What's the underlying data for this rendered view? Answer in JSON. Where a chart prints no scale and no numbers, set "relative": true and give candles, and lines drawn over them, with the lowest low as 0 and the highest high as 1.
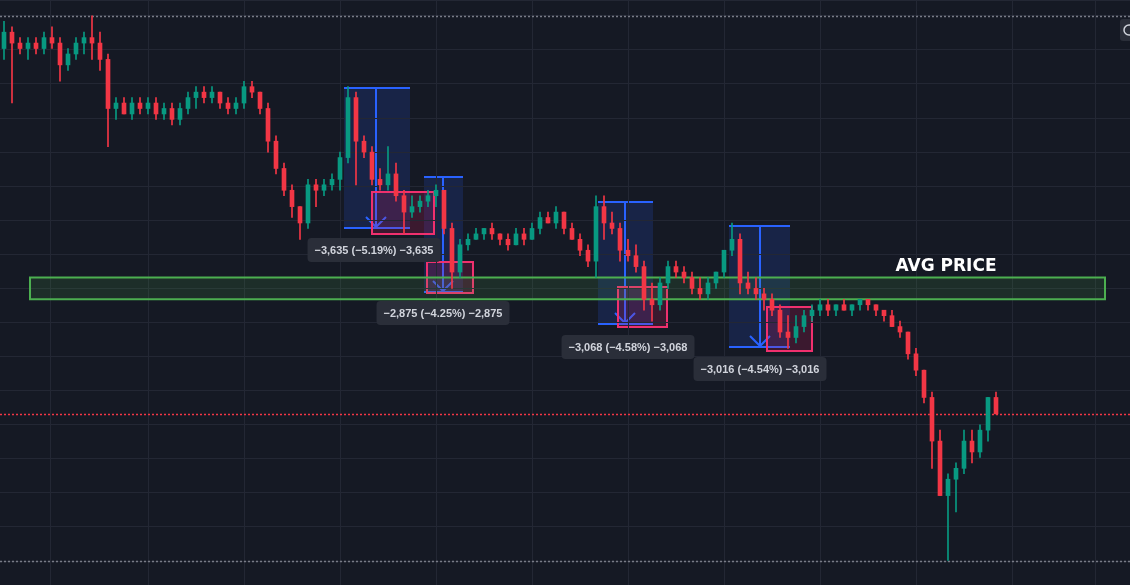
{
  "chart_data": {
    "type": "candlestick",
    "relative": true,
    "tick_labels": false,
    "grid": true,
    "categories": [
      null,
      null,
      null,
      null,
      null,
      null,
      null,
      null,
      null,
      null,
      null,
      null,
      null,
      null,
      null,
      null,
      null,
      null,
      null,
      null,
      null,
      null,
      null,
      null,
      null,
      null,
      null,
      null,
      null,
      null,
      null,
      null,
      null,
      null,
      null,
      null,
      null,
      null,
      null,
      null,
      null,
      null,
      null,
      null,
      null,
      null,
      null,
      null,
      null,
      null,
      null,
      null,
      null,
      null,
      null,
      null,
      null,
      null,
      null,
      null,
      null,
      null,
      null,
      null,
      null,
      null,
      null,
      null,
      null,
      null,
      null,
      null,
      null,
      null,
      null,
      null,
      null,
      null,
      null,
      null,
      null,
      null,
      null,
      null,
      null,
      null,
      null,
      null,
      null,
      null,
      null,
      null,
      null,
      null,
      null,
      null,
      null,
      null,
      null,
      null,
      null,
      null,
      null,
      null,
      null,
      null,
      null,
      null,
      null,
      null,
      null,
      null,
      null,
      null,
      null,
      null,
      null,
      null,
      null,
      null,
      null,
      null,
      null,
      null,
      null
    ],
    "ohlc": [
      [
        0.94,
        0.99,
        0.92,
        0.97
      ],
      [
        0.97,
        0.98,
        0.84,
        0.95
      ],
      [
        0.95,
        0.96,
        0.93,
        0.94
      ],
      [
        0.94,
        0.96,
        0.92,
        0.95
      ],
      [
        0.95,
        0.96,
        0.93,
        0.94
      ],
      [
        0.94,
        0.97,
        0.93,
        0.96
      ],
      [
        0.96,
        0.98,
        0.94,
        0.95
      ],
      [
        0.95,
        0.96,
        0.88,
        0.91
      ],
      [
        0.91,
        0.94,
        0.9,
        0.93
      ],
      [
        0.93,
        0.96,
        0.92,
        0.95
      ],
      [
        0.95,
        0.97,
        0.93,
        0.96
      ],
      [
        0.96,
        1.0,
        0.92,
        0.95
      ],
      [
        0.95,
        0.97,
        0.9,
        0.92
      ],
      [
        0.92,
        0.93,
        0.76,
        0.83
      ],
      [
        0.83,
        0.85,
        0.81,
        0.84
      ],
      [
        0.84,
        0.85,
        0.82,
        0.82
      ],
      [
        0.82,
        0.85,
        0.81,
        0.84
      ],
      [
        0.84,
        0.85,
        0.82,
        0.83
      ],
      [
        0.83,
        0.85,
        0.82,
        0.84
      ],
      [
        0.84,
        0.85,
        0.81,
        0.82
      ],
      [
        0.82,
        0.84,
        0.81,
        0.83
      ],
      [
        0.83,
        0.84,
        0.8,
        0.81
      ],
      [
        0.81,
        0.84,
        0.8,
        0.83
      ],
      [
        0.83,
        0.86,
        0.82,
        0.85
      ],
      [
        0.85,
        0.87,
        0.83,
        0.86
      ],
      [
        0.86,
        0.87,
        0.84,
        0.85
      ],
      [
        0.85,
        0.87,
        0.84,
        0.86
      ],
      [
        0.86,
        0.86,
        0.83,
        0.84
      ],
      [
        0.84,
        0.85,
        0.82,
        0.83
      ],
      [
        0.83,
        0.85,
        0.82,
        0.84
      ],
      [
        0.84,
        0.88,
        0.83,
        0.87
      ],
      [
        0.87,
        0.88,
        0.85,
        0.86
      ],
      [
        0.86,
        0.86,
        0.82,
        0.83
      ],
      [
        0.83,
        0.84,
        0.75,
        0.77
      ],
      [
        0.77,
        0.78,
        0.71,
        0.72
      ],
      [
        0.72,
        0.73,
        0.67,
        0.68
      ],
      [
        0.68,
        0.69,
        0.63,
        0.65
      ],
      [
        0.65,
        0.65,
        0.59,
        0.62
      ],
      [
        0.62,
        0.7,
        0.61,
        0.69
      ],
      [
        0.69,
        0.7,
        0.65,
        0.68
      ],
      [
        0.68,
        0.7,
        0.67,
        0.69
      ],
      [
        0.69,
        0.71,
        0.68,
        0.7
      ],
      [
        0.7,
        0.75,
        0.68,
        0.74
      ],
      [
        0.74,
        0.87,
        0.73,
        0.85
      ],
      [
        0.85,
        0.86,
        0.69,
        0.77
      ],
      [
        0.77,
        0.78,
        0.74,
        0.75
      ],
      [
        0.75,
        0.76,
        0.69,
        0.7
      ],
      [
        0.7,
        0.72,
        0.68,
        0.69
      ],
      [
        0.69,
        0.76,
        0.68,
        0.71
      ],
      [
        0.71,
        0.73,
        0.66,
        0.67
      ],
      [
        0.67,
        0.68,
        0.6,
        0.64
      ],
      [
        0.64,
        0.67,
        0.63,
        0.65
      ],
      [
        0.65,
        0.67,
        0.64,
        0.66
      ],
      [
        0.66,
        0.68,
        0.65,
        0.67
      ],
      [
        0.67,
        0.69,
        0.65,
        0.68
      ],
      [
        0.68,
        0.68,
        0.6,
        0.61
      ],
      [
        0.61,
        0.62,
        0.5,
        0.53
      ],
      [
        0.53,
        0.59,
        0.52,
        0.58
      ],
      [
        0.58,
        0.6,
        0.57,
        0.59
      ],
      [
        0.59,
        0.61,
        0.59,
        0.6
      ],
      [
        0.6,
        0.61,
        0.59,
        0.61
      ],
      [
        0.61,
        0.62,
        0.59,
        0.6
      ],
      [
        0.6,
        0.6,
        0.58,
        0.59
      ],
      [
        0.59,
        0.6,
        0.57,
        0.58
      ],
      [
        0.58,
        0.61,
        0.58,
        0.6
      ],
      [
        0.6,
        0.61,
        0.58,
        0.59
      ],
      [
        0.59,
        0.62,
        0.59,
        0.61
      ],
      [
        0.61,
        0.64,
        0.6,
        0.63
      ],
      [
        0.63,
        0.64,
        0.62,
        0.62
      ],
      [
        0.62,
        0.65,
        0.61,
        0.64
      ],
      [
        0.64,
        0.64,
        0.6,
        0.61
      ],
      [
        0.61,
        0.62,
        0.59,
        0.59
      ],
      [
        0.59,
        0.6,
        0.56,
        0.57
      ],
      [
        0.57,
        0.58,
        0.54,
        0.55
      ],
      [
        0.55,
        0.67,
        0.52,
        0.65
      ],
      [
        0.65,
        0.67,
        0.59,
        0.62
      ],
      [
        0.62,
        0.64,
        0.6,
        0.61
      ],
      [
        0.61,
        0.62,
        0.55,
        0.57
      ],
      [
        0.57,
        0.59,
        0.55,
        0.56
      ],
      [
        0.56,
        0.58,
        0.53,
        0.54
      ],
      [
        0.54,
        0.55,
        0.46,
        0.48
      ],
      [
        0.48,
        0.51,
        0.44,
        0.47
      ],
      [
        0.47,
        0.52,
        0.46,
        0.51
      ],
      [
        0.51,
        0.55,
        0.5,
        0.54
      ],
      [
        0.54,
        0.55,
        0.52,
        0.53
      ],
      [
        0.53,
        0.54,
        0.51,
        0.52
      ],
      [
        0.52,
        0.53,
        0.49,
        0.5
      ],
      [
        0.5,
        0.52,
        0.48,
        0.49
      ],
      [
        0.49,
        0.52,
        0.48,
        0.51
      ],
      [
        0.51,
        0.53,
        0.5,
        0.53
      ],
      [
        0.53,
        0.57,
        0.52,
        0.57
      ],
      [
        0.57,
        0.62,
        0.56,
        0.59
      ],
      [
        0.59,
        0.6,
        0.49,
        0.51
      ],
      [
        0.51,
        0.53,
        0.49,
        0.5
      ],
      [
        0.5,
        0.52,
        0.48,
        0.49
      ],
      [
        0.49,
        0.5,
        0.46,
        0.48
      ],
      [
        0.48,
        0.49,
        0.45,
        0.46
      ],
      [
        0.46,
        0.47,
        0.41,
        0.42
      ],
      [
        0.42,
        0.45,
        0.39,
        0.41
      ],
      [
        0.41,
        0.45,
        0.4,
        0.43
      ],
      [
        0.43,
        0.46,
        0.42,
        0.45
      ],
      [
        0.45,
        0.47,
        0.44,
        0.46
      ],
      [
        0.46,
        0.48,
        0.45,
        0.47
      ],
      [
        0.47,
        0.48,
        0.45,
        0.46
      ],
      [
        0.46,
        0.47,
        0.45,
        0.47
      ],
      [
        0.47,
        0.48,
        0.46,
        0.46
      ],
      [
        0.46,
        0.47,
        0.45,
        0.47
      ],
      [
        0.47,
        0.48,
        0.46,
        0.48
      ],
      [
        0.48,
        0.48,
        0.46,
        0.47
      ],
      [
        0.47,
        0.47,
        0.45,
        0.46
      ],
      [
        0.46,
        0.46,
        0.44,
        0.45
      ],
      [
        0.45,
        0.46,
        0.43,
        0.43
      ],
      [
        0.43,
        0.44,
        0.41,
        0.42
      ],
      [
        0.42,
        0.42,
        0.37,
        0.38
      ],
      [
        0.38,
        0.39,
        0.34,
        0.35
      ],
      [
        0.35,
        0.35,
        0.29,
        0.3
      ],
      [
        0.3,
        0.31,
        0.17,
        0.22
      ],
      [
        0.22,
        0.24,
        0.12,
        0.12
      ],
      [
        0.12,
        0.16,
        0.0,
        0.15
      ],
      [
        0.15,
        0.18,
        0.09,
        0.17
      ],
      [
        0.17,
        0.24,
        0.16,
        0.22
      ],
      [
        0.22,
        0.24,
        0.18,
        0.2
      ],
      [
        0.2,
        0.25,
        0.19,
        0.24
      ],
      [
        0.24,
        0.3,
        0.22,
        0.3
      ],
      [
        0.3,
        0.31,
        0.27,
        0.27
      ]
    ],
    "colors": [
      "#089981",
      "#f23645",
      "#f23645",
      "#089981",
      "#f23645",
      "#089981",
      "#f23645",
      "#f23645",
      "#089981",
      "#089981",
      "#089981",
      "#f23645",
      "#f23645",
      "#f23645",
      "#089981",
      "#f23645",
      "#089981",
      "#f23645",
      "#089981",
      "#f23645",
      "#089981",
      "#f23645",
      "#089981",
      "#089981",
      "#089981",
      "#f23645",
      "#089981",
      "#f23645",
      "#f23645",
      "#089981",
      "#089981",
      "#f23645",
      "#f23645",
      "#f23645",
      "#f23645",
      "#f23645",
      "#f23645",
      "#f23645",
      "#089981",
      "#f23645",
      "#089981",
      "#089981",
      "#089981",
      "#089981",
      "#f23645",
      "#f23645",
      "#f23645",
      "#f23645",
      "#089981",
      "#f23645",
      "#f23645",
      "#089981",
      "#089981",
      "#089981",
      "#089981",
      "#f23645",
      "#f23645",
      "#089981",
      "#089981",
      "#089981",
      "#089981",
      "#f23645",
      "#f23645",
      "#f23645",
      "#089981",
      "#f23645",
      "#089981",
      "#089981",
      "#f23645",
      "#089981",
      "#f23645",
      "#f23645",
      "#f23645",
      "#f23645",
      "#089981",
      "#f23645",
      "#f23645",
      "#f23645",
      "#f23645",
      "#f23645",
      "#f23645",
      "#f23645",
      "#089981",
      "#089981",
      "#f23645",
      "#f23645",
      "#f23645",
      "#f23645",
      "#089981",
      "#089981",
      "#089981",
      "#089981",
      "#f23645",
      "#f23645",
      "#f23645",
      "#f23645",
      "#f23645",
      "#f23645",
      "#f23645",
      "#089981",
      "#089981",
      "#089981",
      "#089981",
      "#f23645",
      "#089981",
      "#f23645",
      "#089981",
      "#089981",
      "#f23645",
      "#f23645",
      "#f23645",
      "#f23645",
      "#f23645",
      "#f23645",
      "#f23645",
      "#f23645",
      "#f23645",
      "#f23645",
      "#089981",
      "#089981",
      "#089981",
      "#f23645",
      "#089981",
      "#089981",
      "#f23645"
    ],
    "ref_lines": [
      {
        "axis": "y",
        "value": 1.0,
        "color": "#787b86",
        "line_style": "dotted"
      },
      {
        "axis": "y",
        "value": 0,
        "color": "#787b86",
        "line_style": "dotted"
      },
      {
        "axis": "y",
        "value": 0.27,
        "color": "#f23645",
        "line_style": "dotted"
      }
    ],
    "bands": [
      {
        "axis": "y",
        "from": 0.48,
        "to": 0.52,
        "label": "AVG PRICE",
        "color": "#4caf50"
      }
    ],
    "annotations": [
      "−3,635 (−5.19%) −3,635",
      "−2,875 (−4.25%) −2,875",
      "−3,068 (−4.58%) −3,068",
      "−3,016 (−4.54%) −3,016"
    ]
  }
}
